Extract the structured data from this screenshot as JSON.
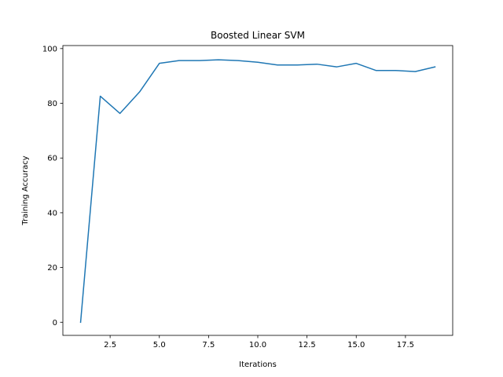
{
  "chart_data": {
    "type": "line",
    "title": "Boosted Linear SVM",
    "xlabel": "Iterations",
    "ylabel": "Training Accuracy",
    "xlim": [
      0.1,
      19.9
    ],
    "ylim": [
      -4.8,
      101.1
    ],
    "xticks": [
      2.5,
      5.0,
      7.5,
      10.0,
      12.5,
      15.0,
      17.5
    ],
    "xtick_labels": [
      "2.5",
      "5.0",
      "7.5",
      "10.0",
      "12.5",
      "15.0",
      "17.5"
    ],
    "yticks": [
      0,
      20,
      40,
      60,
      80,
      100
    ],
    "ytick_labels": [
      "0",
      "20",
      "40",
      "60",
      "80",
      "100"
    ],
    "grid": false,
    "series": [
      {
        "color": "#1f77b4",
        "x": [
          1,
          2,
          3,
          4,
          5,
          6,
          7,
          8,
          9,
          10,
          11,
          12,
          13,
          14,
          15,
          16,
          17,
          18,
          19
        ],
        "y": [
          0.0,
          82.6,
          76.3,
          84.2,
          94.6,
          95.6,
          95.6,
          95.9,
          95.6,
          95.0,
          94.0,
          94.0,
          94.3,
          93.3,
          94.6,
          92.0,
          92.0,
          91.6,
          93.3
        ]
      }
    ]
  }
}
